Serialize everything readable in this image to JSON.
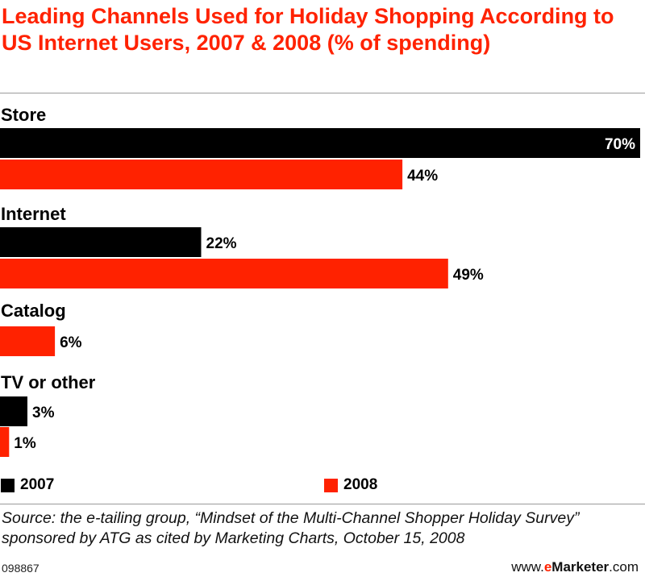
{
  "title": "Leading Channels Used for Holiday Shopping According to US Internet Users, 2007 & 2008 (% of spending)",
  "colors": {
    "series_2007": "#000000",
    "series_2008": "#ff2200",
    "title": "#ff2200",
    "rule": "#9a9a9a"
  },
  "chart_data": {
    "type": "bar",
    "orientation": "horizontal",
    "categories": [
      "Store",
      "Internet",
      "Catalog",
      "TV or other"
    ],
    "series": [
      {
        "name": "2007",
        "values": [
          70,
          22,
          null,
          3
        ]
      },
      {
        "name": "2008",
        "values": [
          44,
          49,
          6,
          1
        ]
      }
    ],
    "value_labels": {
      "2007": [
        "70%",
        "22%",
        "",
        "3%"
      ],
      "2008": [
        "44%",
        "49%",
        "6%",
        "1%"
      ]
    },
    "xlim": [
      0,
      70
    ],
    "grid": false,
    "legend_position": "bottom"
  },
  "legend": {
    "items": [
      "2007",
      "2008"
    ]
  },
  "footer": {
    "source": "Source: the e-tailing group, “Mindset of the Multi-Channel Shopper Holiday Survey” sponsored by ATG as cited by Marketing Charts, October 15, 2008",
    "chart_id": "098867",
    "www": "www.",
    "brand_e": "e",
    "brand_name": "Marketer",
    "brand_tld": ".com"
  }
}
